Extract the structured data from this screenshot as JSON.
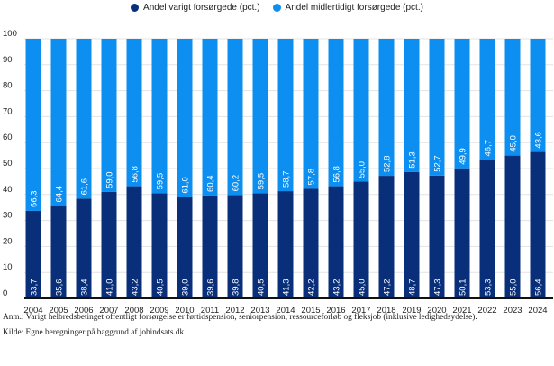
{
  "chart_data": {
    "type": "bar",
    "stacked": true,
    "categories": [
      "2004",
      "2005",
      "2006",
      "2007",
      "2008",
      "2009",
      "2010",
      "2011",
      "2012",
      "2013",
      "2014",
      "2015",
      "2016",
      "2017",
      "2018",
      "2019",
      "2020",
      "2021",
      "2022",
      "2023",
      "2024"
    ],
    "series": [
      {
        "name": "Andel varigt forsørgede (pct.)",
        "color": "#0a2f7a",
        "values": [
          33.7,
          35.6,
          38.4,
          41.0,
          43.2,
          40.5,
          39.0,
          39.6,
          39.8,
          40.5,
          41.3,
          42.2,
          43.2,
          45.0,
          47.2,
          48.7,
          47.3,
          50.1,
          53.3,
          55.0,
          56.4
        ],
        "labels": [
          "33,7",
          "35,6",
          "38,4",
          "41,0",
          "43,2",
          "40,5",
          "39,0",
          "39,6",
          "39,8",
          "40,5",
          "41,3",
          "42,2",
          "43,2",
          "45,0",
          "47,2",
          "48,7",
          "47,3",
          "50,1",
          "53,3",
          "55,0",
          "56,4"
        ]
      },
      {
        "name": "Andel midlertidigt forsørgede (pct.)",
        "color": "#0c8ff0",
        "values": [
          66.3,
          64.4,
          61.6,
          59.0,
          56.8,
          59.5,
          61.0,
          60.4,
          60.2,
          59.5,
          58.7,
          57.8,
          56.8,
          55.0,
          52.8,
          51.3,
          52.7,
          49.9,
          46.7,
          45.0,
          43.6
        ],
        "labels": [
          "66,3",
          "64,4",
          "61,6",
          "59,0",
          "56,8",
          "59,5",
          "61,0",
          "60,4",
          "60,2",
          "59,5",
          "58,7",
          "57,8",
          "56,8",
          "55,0",
          "52,8",
          "51,3",
          "52,7",
          "49,9",
          "46,7",
          "45,0",
          "43,6"
        ]
      }
    ],
    "ylim": [
      0,
      100
    ],
    "yticks": [
      "0",
      "10",
      "20",
      "30",
      "40",
      "50",
      "60",
      "70",
      "80",
      "90",
      "100"
    ],
    "grid": true,
    "legend": "top-center",
    "xlabel": "",
    "ylabel": "",
    "title": ""
  },
  "notes": {
    "anm": "Anm.: Varigt helbredsbetinget offentligt forsørgelse er førtidspension, seniorpension, ressourceforløb og fleksjob (inklusive ledighedsydelse).",
    "kilde": "Kilde: Egne beregninger på baggrund af jobindsats.dk."
  }
}
